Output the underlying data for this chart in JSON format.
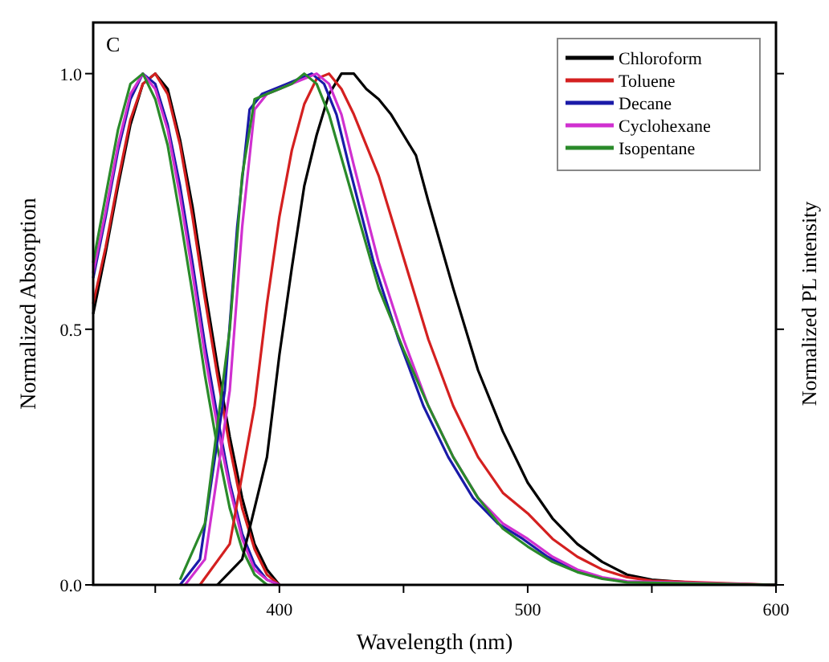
{
  "chart_data": {
    "type": "line",
    "xlabel": "Wavelength (nm)",
    "ylabel": "Normalized Absorption",
    "y2label": "Normalized PL intensity",
    "annotations": [
      "C"
    ],
    "xlim": [
      325,
      600
    ],
    "xticks": [
      {
        "value": 350,
        "label": null
      },
      400,
      {
        "value": 450,
        "label": null
      },
      500,
      {
        "value": 550,
        "label": null
      },
      600
    ],
    "ylim": [
      0,
      1.1
    ],
    "yticks": [
      {
        "value": 0,
        "label": "0.0"
      },
      0.5,
      {
        "value": 1,
        "label": "1.0"
      }
    ],
    "legend": "top right",
    "grid": false,
    "marker": "none",
    "line_style": "solid",
    "series": [
      {
        "color": "#000000",
        "x": [
          325,
          330,
          335,
          340,
          345,
          350,
          355,
          360,
          365,
          370,
          375,
          380,
          385,
          390,
          395,
          400
        ],
        "values": [
          0.53,
          0.65,
          0.78,
          0.9,
          0.98,
          1.0,
          0.97,
          0.87,
          0.74,
          0.58,
          0.43,
          0.29,
          0.17,
          0.08,
          0.03,
          0.0
        ]
      },
      {
        "color": "#d42020",
        "x": [
          325,
          330,
          335,
          340,
          345,
          350,
          355,
          360,
          365,
          370,
          375,
          380,
          385,
          390,
          395,
          400
        ],
        "values": [
          0.55,
          0.66,
          0.79,
          0.91,
          0.98,
          1.0,
          0.96,
          0.86,
          0.72,
          0.56,
          0.41,
          0.27,
          0.15,
          0.07,
          0.02,
          0.0
        ]
      },
      {
        "color": "#1a1aa8",
        "x": [
          325,
          330,
          335,
          340,
          345,
          350,
          355,
          360,
          365,
          370,
          375,
          380,
          385,
          390,
          395,
          400
        ],
        "values": [
          0.6,
          0.72,
          0.85,
          0.95,
          1.0,
          0.98,
          0.9,
          0.78,
          0.63,
          0.47,
          0.33,
          0.2,
          0.1,
          0.04,
          0.01,
          0.0
        ]
      },
      {
        "color": "#d030d0",
        "x": [
          325,
          330,
          335,
          340,
          345,
          350,
          355,
          360,
          365,
          370,
          375,
          380,
          385,
          390,
          395,
          400
        ],
        "values": [
          0.61,
          0.73,
          0.86,
          0.96,
          1.0,
          0.97,
          0.89,
          0.76,
          0.61,
          0.45,
          0.31,
          0.19,
          0.09,
          0.03,
          0.01,
          0.0
        ]
      },
      {
        "color": "#2a8a2a",
        "x": [
          325,
          330,
          335,
          340,
          345,
          350,
          355,
          360,
          365,
          370,
          375,
          380,
          385,
          390,
          395
        ],
        "values": [
          0.63,
          0.76,
          0.89,
          0.98,
          1.0,
          0.95,
          0.86,
          0.72,
          0.57,
          0.41,
          0.27,
          0.15,
          0.07,
          0.02,
          0.0
        ]
      },
      {
        "name": "Chloroform",
        "color": "#000000",
        "x": [
          375,
          385,
          395,
          400,
          405,
          410,
          415,
          420,
          425,
          430,
          435,
          440,
          445,
          450,
          455,
          460,
          470,
          480,
          490,
          500,
          510,
          520,
          530,
          540,
          550,
          570,
          600
        ],
        "values": [
          0,
          0.05,
          0.25,
          0.45,
          0.62,
          0.78,
          0.88,
          0.96,
          1.0,
          1.0,
          0.97,
          0.95,
          0.92,
          0.88,
          0.84,
          0.75,
          0.58,
          0.42,
          0.3,
          0.2,
          0.13,
          0.08,
          0.045,
          0.02,
          0.01,
          0.003,
          0
        ]
      },
      {
        "name": "Toluene",
        "color": "#d42020",
        "x": [
          368,
          380,
          390,
          395,
          400,
          405,
          410,
          415,
          420,
          425,
          430,
          440,
          450,
          460,
          470,
          480,
          490,
          500,
          510,
          520,
          530,
          540,
          550,
          600
        ],
        "values": [
          0,
          0.08,
          0.35,
          0.55,
          0.72,
          0.85,
          0.94,
          0.99,
          1.0,
          0.97,
          0.92,
          0.8,
          0.64,
          0.48,
          0.35,
          0.25,
          0.18,
          0.14,
          0.09,
          0.055,
          0.03,
          0.015,
          0.008,
          0
        ]
      },
      {
        "name": "Decane",
        "color": "#1a1aa8",
        "x": [
          360,
          368,
          378,
          383,
          388,
          393,
          398,
          403,
          408,
          413,
          418,
          423,
          428,
          438,
          448,
          458,
          468,
          478,
          488,
          498,
          508,
          518,
          528
        ],
        "values": [
          0,
          0.05,
          0.38,
          0.7,
          0.93,
          0.96,
          0.97,
          0.98,
          0.99,
          1.0,
          0.98,
          0.92,
          0.82,
          0.63,
          0.48,
          0.35,
          0.25,
          0.17,
          0.12,
          0.09,
          0.055,
          0.03,
          0.015
        ]
      },
      {
        "name": "Cyclohexane",
        "color": "#d030d0",
        "x": [
          362,
          370,
          380,
          385,
          390,
          395,
          400,
          405,
          410,
          415,
          420,
          425,
          430,
          440,
          450,
          460,
          470,
          480,
          490,
          500,
          510,
          520,
          530,
          540,
          600
        ],
        "values": [
          0,
          0.05,
          0.38,
          0.7,
          0.93,
          0.96,
          0.97,
          0.98,
          0.99,
          1.0,
          0.98,
          0.92,
          0.82,
          0.63,
          0.48,
          0.35,
          0.25,
          0.17,
          0.12,
          0.09,
          0.055,
          0.03,
          0.015,
          0.007,
          0
        ]
      },
      {
        "name": "Isopentane",
        "color": "#2a8a2a",
        "x": [
          360,
          370,
          380,
          385,
          390,
          395,
          400,
          405,
          410,
          415,
          420,
          430,
          440,
          450,
          460,
          470,
          480,
          490,
          500,
          510,
          520,
          530,
          540,
          600
        ],
        "values": [
          0.01,
          0.12,
          0.5,
          0.8,
          0.95,
          0.96,
          0.97,
          0.98,
          1.0,
          0.98,
          0.92,
          0.75,
          0.58,
          0.46,
          0.35,
          0.25,
          0.17,
          0.11,
          0.075,
          0.045,
          0.025,
          0.012,
          0.005,
          0
        ]
      }
    ]
  }
}
